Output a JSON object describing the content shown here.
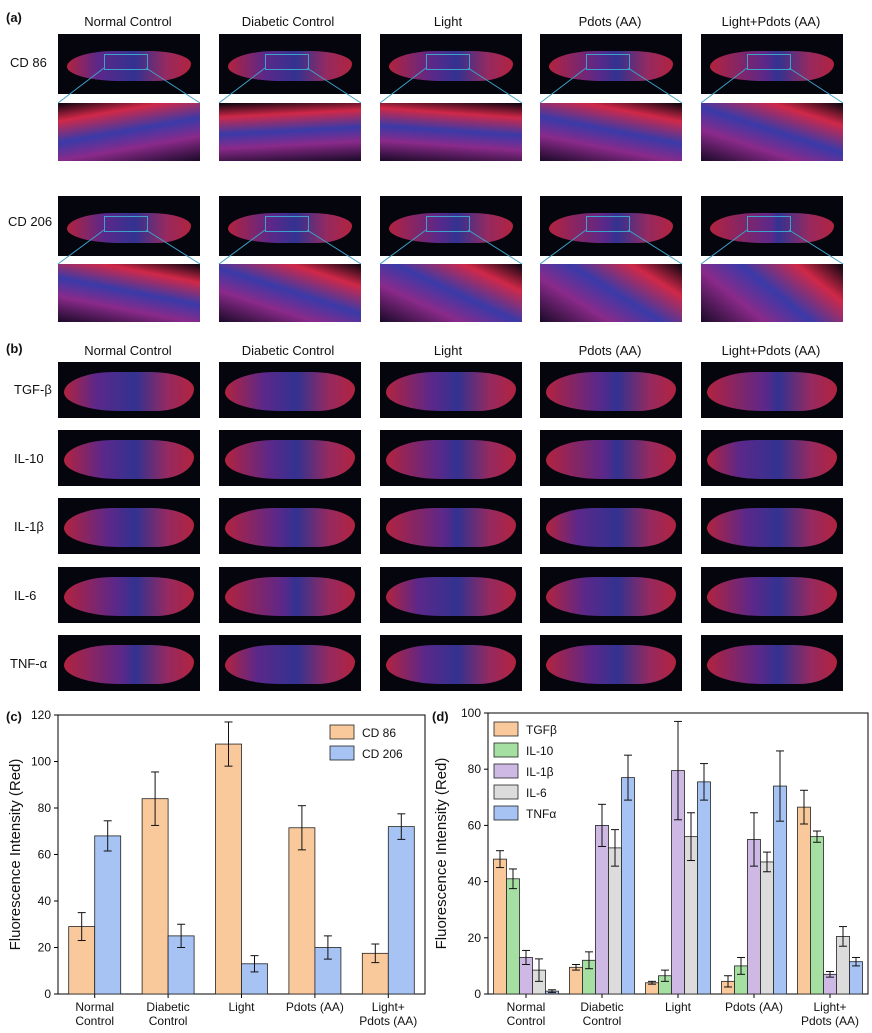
{
  "panels": {
    "a": "(a)",
    "b": "(b)",
    "c": "(c)",
    "d": "(d)"
  },
  "groups": [
    "Normal Control",
    "Diabetic Control",
    "Light",
    "Pdots (AA)",
    "Light+Pdots (AA)"
  ],
  "panel_a_rows": [
    "CD 86",
    "CD 206"
  ],
  "panel_b_rows": [
    "TGF-β",
    "IL-10",
    "IL-1β",
    "IL-6",
    "TNF-α"
  ],
  "colors": {
    "orange": "#f9c99c",
    "blue": "#a6c3f4",
    "green": "#a5e0a2",
    "purple": "#cdb9e3",
    "gray": "#dcdcdc",
    "tissue_red": "#d02848",
    "tissue_blue": "#3a3aa8",
    "zoom_box": "#3fa0c8"
  },
  "chart_data": [
    {
      "type": "bar",
      "categories": [
        "Normal\nControl",
        "Diabetic\nControl",
        "Light",
        "Pdots (AA)",
        "Light+\nPdots (AA)"
      ],
      "series": [
        {
          "name": "CD 86",
          "values": [
            29,
            84,
            107.5,
            71.5,
            17.5
          ],
          "errors": [
            6,
            11.5,
            9.5,
            9.5,
            4
          ],
          "color": "#f9c99c"
        },
        {
          "name": "CD 206",
          "values": [
            68,
            25,
            13,
            20,
            72
          ],
          "errors": [
            6.5,
            5,
            3.5,
            5,
            5.5
          ],
          "color": "#a6c3f4"
        }
      ],
      "ylabel": "Fluorescence Intensity (Red)",
      "xlabel": "",
      "ylim": [
        0,
        120
      ],
      "yticks": [
        0,
        20,
        40,
        60,
        80,
        100,
        120
      ],
      "legend": "top-right"
    },
    {
      "type": "bar",
      "categories": [
        "Normal\nControl",
        "Diabetic\nControl",
        "Light",
        "Pdots (AA)",
        "Light+\nPdots (AA)"
      ],
      "series": [
        {
          "name": "TGFβ",
          "values": [
            48,
            9.5,
            4,
            4.5,
            66.5
          ],
          "errors": [
            3,
            1,
            0.5,
            2,
            6
          ],
          "color": "#f9c99c"
        },
        {
          "name": "IL-10",
          "values": [
            41,
            12,
            6.5,
            10,
            56
          ],
          "errors": [
            3.5,
            3,
            2,
            3,
            2
          ],
          "color": "#a5e0a2"
        },
        {
          "name": "IL-1β",
          "values": [
            13,
            60,
            79.5,
            55,
            7
          ],
          "errors": [
            2.5,
            7.5,
            17.5,
            9.5,
            1
          ],
          "color": "#cdb9e3"
        },
        {
          "name": "IL-6",
          "values": [
            8.5,
            52,
            56,
            47,
            20.5
          ],
          "errors": [
            4,
            6.5,
            8.5,
            3.5,
            3.5
          ],
          "color": "#dcdcdc"
        },
        {
          "name": "TNFα",
          "values": [
            1,
            77,
            75.5,
            74,
            11.5
          ],
          "errors": [
            0.5,
            8,
            6.5,
            12.5,
            1.5
          ],
          "color": "#a6c3f4"
        }
      ],
      "ylabel": "Fluorescence Intensity (Red)",
      "xlabel": "",
      "ylim": [
        0,
        100
      ],
      "yticks": [
        0,
        20,
        40,
        60,
        80,
        100
      ],
      "legend": "top-left"
    }
  ]
}
